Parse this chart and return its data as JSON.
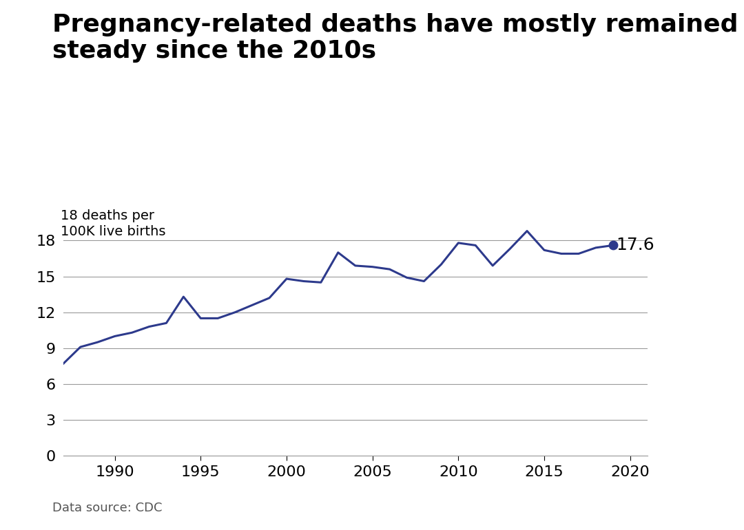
{
  "title": "Pregnancy-related deaths have mostly remained\nsteady since the 2010s",
  "ylabel_line1": "18 deaths per",
  "ylabel_line2": "100K live births",
  "data_source": "Data source: CDC",
  "line_color": "#2d3a8c",
  "line_width": 2.2,
  "background_color": "#ffffff",
  "last_value_label": "17.6",
  "years": [
    1987,
    1988,
    1989,
    1990,
    1991,
    1992,
    1993,
    1994,
    1995,
    1996,
    1997,
    1998,
    1999,
    2000,
    2001,
    2002,
    2003,
    2004,
    2005,
    2006,
    2007,
    2008,
    2009,
    2010,
    2011,
    2012,
    2013,
    2014,
    2015,
    2016,
    2017,
    2018,
    2019
  ],
  "values": [
    7.7,
    9.1,
    9.5,
    10.0,
    10.3,
    10.8,
    11.1,
    13.3,
    11.5,
    11.5,
    12.0,
    12.6,
    13.2,
    14.8,
    14.6,
    14.5,
    17.0,
    15.9,
    15.8,
    15.6,
    14.9,
    14.6,
    16.0,
    17.8,
    17.6,
    15.9,
    17.3,
    18.8,
    17.2,
    16.9,
    16.9,
    17.4,
    17.6
  ],
  "yticks": [
    0,
    3,
    6,
    9,
    12,
    15,
    18
  ],
  "xticks": [
    1990,
    1995,
    2000,
    2005,
    2010,
    2015,
    2020
  ],
  "ylim": [
    0,
    19.5
  ],
  "xlim": [
    1987,
    2021
  ],
  "title_fontsize": 26,
  "axis_label_fontsize": 14,
  "tick_fontsize": 16,
  "annotation_fontsize": 18,
  "source_fontsize": 13
}
